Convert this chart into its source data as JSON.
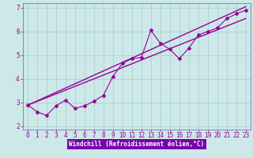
{
  "xlabel": "Windchill (Refroidissement éolien,°C)",
  "bg_color": "#cce8e8",
  "line_color": "#990099",
  "grid_color": "#aacccc",
  "spine_color": "#7777aa",
  "xlim": [
    -0.5,
    23.5
  ],
  "ylim": [
    1.85,
    7.2
  ],
  "yticks": [
    2,
    3,
    4,
    5,
    6,
    7
  ],
  "xticks": [
    0,
    1,
    2,
    3,
    4,
    5,
    6,
    7,
    8,
    9,
    10,
    11,
    12,
    13,
    14,
    15,
    16,
    17,
    18,
    19,
    20,
    21,
    22,
    23
  ],
  "scatter_x": [
    0,
    1,
    2,
    3,
    4,
    5,
    6,
    7,
    8,
    9,
    10,
    11,
    12,
    13,
    14,
    15,
    16,
    17,
    18,
    19,
    20,
    21,
    22,
    23
  ],
  "scatter_y": [
    2.9,
    2.6,
    2.45,
    2.85,
    3.1,
    2.75,
    2.85,
    3.05,
    3.3,
    4.1,
    4.65,
    4.85,
    4.9,
    6.05,
    5.5,
    5.25,
    4.85,
    5.3,
    5.85,
    6.0,
    6.15,
    6.55,
    6.75,
    6.9
  ],
  "line1_x": [
    0,
    23
  ],
  "line1_y": [
    2.88,
    7.05
  ],
  "line2_x": [
    0,
    23
  ],
  "line2_y": [
    2.88,
    6.55
  ],
  "xlabel_bar_color": "#7700aa",
  "tick_fontsize": 5.5,
  "label_fontsize": 5.5
}
